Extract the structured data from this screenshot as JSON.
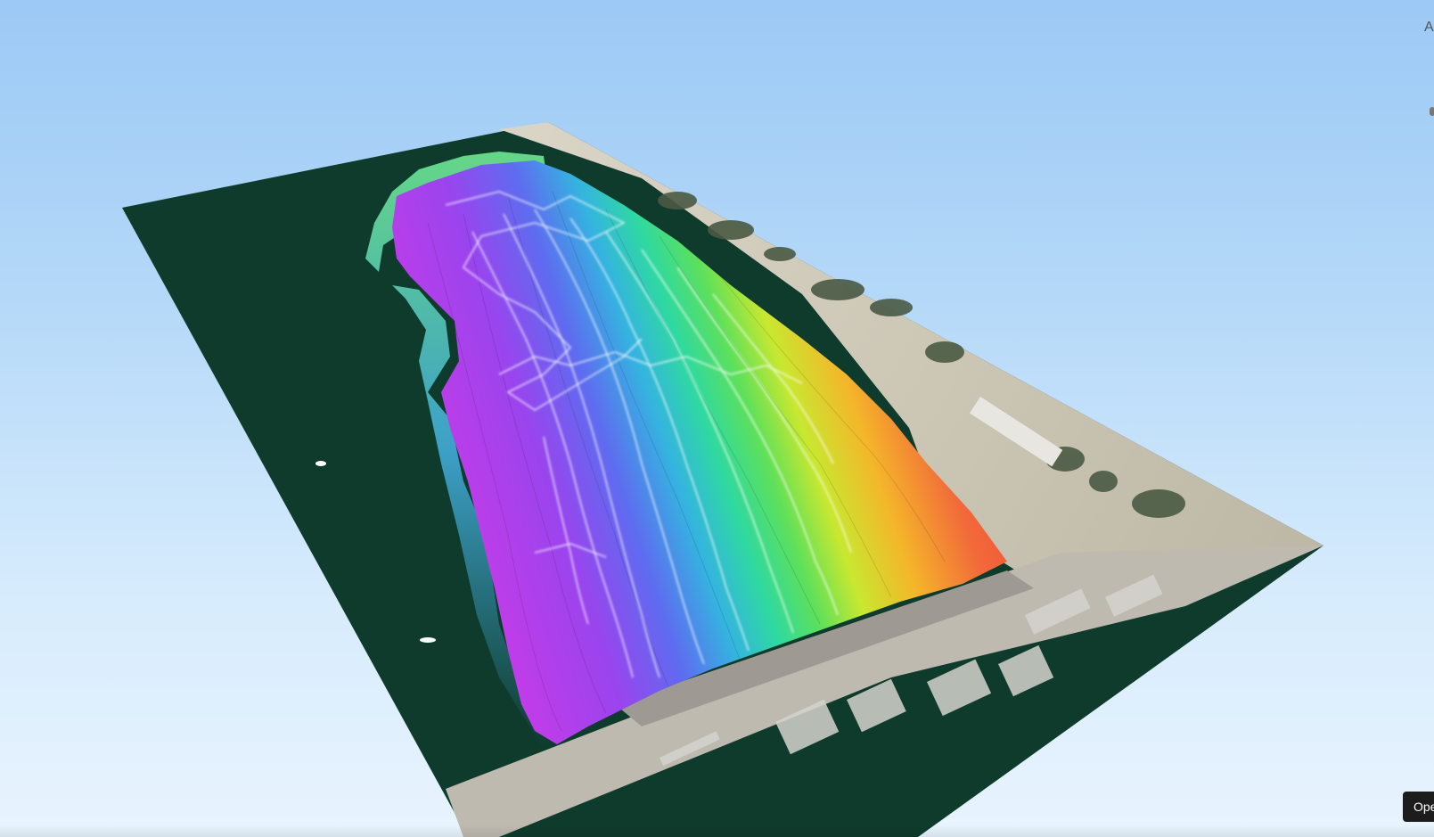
{
  "viewer": {
    "right_edge_label": "A",
    "open_button_label": "Ope"
  },
  "colors": {
    "sky_top": "#9cc9f5",
    "sky_bottom": "#e8f4fe",
    "water": "#0e3b2c",
    "land": "#cfc9ba",
    "sand": "#ddd7c8",
    "vegetation": "#4a5a44",
    "survey_track": "#ffffff"
  },
  "map": {
    "type": "3d-satellite-terrain",
    "bathymetry_colormap": [
      "#c43ce8",
      "#7a4df0",
      "#3f86f0",
      "#2fd6b0",
      "#58e060",
      "#c8e830",
      "#f4b62a",
      "#f26a3a",
      "#ee4a38"
    ],
    "survey_tracks_visible": true
  }
}
